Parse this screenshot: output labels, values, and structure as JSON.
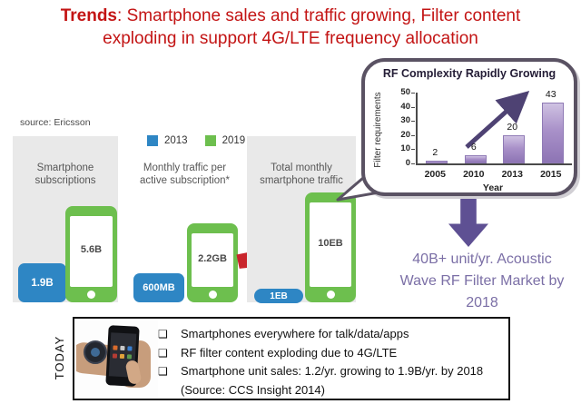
{
  "title": {
    "bold": "Trends",
    "rest": ": Smartphone sales and traffic growing, Filter content\nexploding in support 4G/LTE frequency allocation"
  },
  "source_note": "source: Ericsson",
  "legend": {
    "items": [
      {
        "label": "2013",
        "color": "#2e86c4"
      },
      {
        "label": "2019",
        "color": "#6dbf4e"
      }
    ]
  },
  "panels": [
    {
      "label": "Smartphone subscriptions",
      "value_2013": "1.9B",
      "value_2019": "5.6B"
    },
    {
      "label": "Monthly traffic per active subscription*",
      "value_2013": "600MB",
      "value_2019": "2.2GB"
    },
    {
      "label": "Total monthly smartphone traffic",
      "value_2013": "1EB",
      "value_2019": "10EB"
    }
  ],
  "chart_data": {
    "type": "bar",
    "title": "RF Complexity Rapidly Growing",
    "categories": [
      "2005",
      "2010",
      "2013",
      "2015"
    ],
    "values": [
      2,
      6,
      20,
      43
    ],
    "xlabel": "Year",
    "ylabel": "Filter requirements",
    "ylim": [
      0,
      50
    ],
    "yticks": [
      0,
      10,
      20,
      30,
      40,
      50
    ],
    "bar_color": "#9d86c0",
    "annotation": "upward trend arrow from 2010 bar toward 2015 bar",
    "legend_position": "none",
    "grid": false
  },
  "market_callout": {
    "text": "40B+ unit/yr. Acoustic Wave RF Filter Market by 2018",
    "color": "#7b6fa6"
  },
  "today": {
    "label": "TODAY",
    "bullet_glyph": "❑",
    "bullets": [
      "Smartphones everywhere for talk/data/apps",
      "RF filter content exploding due to 4G/LTE",
      "Smartphone unit sales: 1.2/yr. growing to 1.9B/yr. by 2018\n(Source: CCS Insight 2014)"
    ]
  },
  "colors": {
    "title_red": "#c31414",
    "blue_2013": "#2e86c4",
    "green_2019": "#6dbf4e",
    "panel_gray": "#e9e9e9",
    "red_arrow": "#c9252c",
    "purple_bar": "#9d86c0",
    "trend_arrow": "#4e4273",
    "chart_border": "#5a5263",
    "down_arrow": "#5e5093",
    "market_text": "#7b6fa6"
  }
}
